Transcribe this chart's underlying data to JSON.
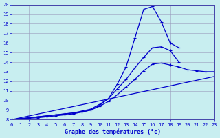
{
  "xlabel": "Graphe des températures (°c)",
  "background_color": "#c8eef0",
  "line_color": "#0000cc",
  "grid_color": "#9999bb",
  "xlim": [
    0,
    23
  ],
  "ylim": [
    8,
    20
  ],
  "xticks": [
    0,
    1,
    2,
    3,
    4,
    5,
    6,
    7,
    8,
    9,
    10,
    11,
    12,
    13,
    14,
    15,
    16,
    17,
    18,
    19,
    20,
    21,
    22,
    23
  ],
  "yticks": [
    8,
    9,
    10,
    11,
    12,
    13,
    14,
    15,
    16,
    17,
    18,
    19,
    20
  ],
  "line1_x": [
    0,
    1,
    2,
    3,
    4,
    5,
    6,
    7,
    8,
    9,
    10,
    11,
    12,
    13,
    14,
    15,
    16,
    17,
    18,
    19,
    20,
    21,
    22,
    23
  ],
  "line1_y": [
    8.0,
    8.1,
    8.2,
    8.3,
    8.4,
    8.5,
    8.6,
    8.7,
    8.8,
    9.0,
    9.5,
    10.2,
    11.7,
    13.5,
    16.5,
    19.5,
    19.8,
    18.2,
    16.0,
    15.5,
    null,
    null,
    null,
    null
  ],
  "line2_x": [
    0,
    1,
    2,
    3,
    4,
    5,
    6,
    7,
    8,
    9,
    10,
    11,
    12,
    13,
    14,
    15,
    16,
    17,
    18,
    19,
    20,
    21,
    22,
    23
  ],
  "line2_y": [
    8.0,
    8.1,
    8.2,
    8.3,
    8.4,
    8.5,
    8.6,
    8.7,
    8.9,
    9.1,
    9.6,
    10.2,
    11.2,
    12.2,
    13.4,
    14.5,
    15.5,
    15.6,
    15.2,
    14.0,
    null,
    null,
    null,
    null
  ],
  "line3_x": [
    0,
    1,
    2,
    3,
    4,
    5,
    6,
    7,
    8,
    9,
    10,
    11,
    12,
    13,
    14,
    15,
    16,
    17,
    18,
    19,
    20,
    21,
    22,
    23
  ],
  "line3_y": [
    8.0,
    8.1,
    8.15,
    8.2,
    8.3,
    8.4,
    8.5,
    8.6,
    8.8,
    9.0,
    9.4,
    9.9,
    10.6,
    11.4,
    12.2,
    13.1,
    13.8,
    13.9,
    13.7,
    13.5,
    13.2,
    13.1,
    13.0,
    13.0
  ],
  "line4_x": [
    0,
    23
  ],
  "line4_y": [
    8.0,
    12.5
  ]
}
